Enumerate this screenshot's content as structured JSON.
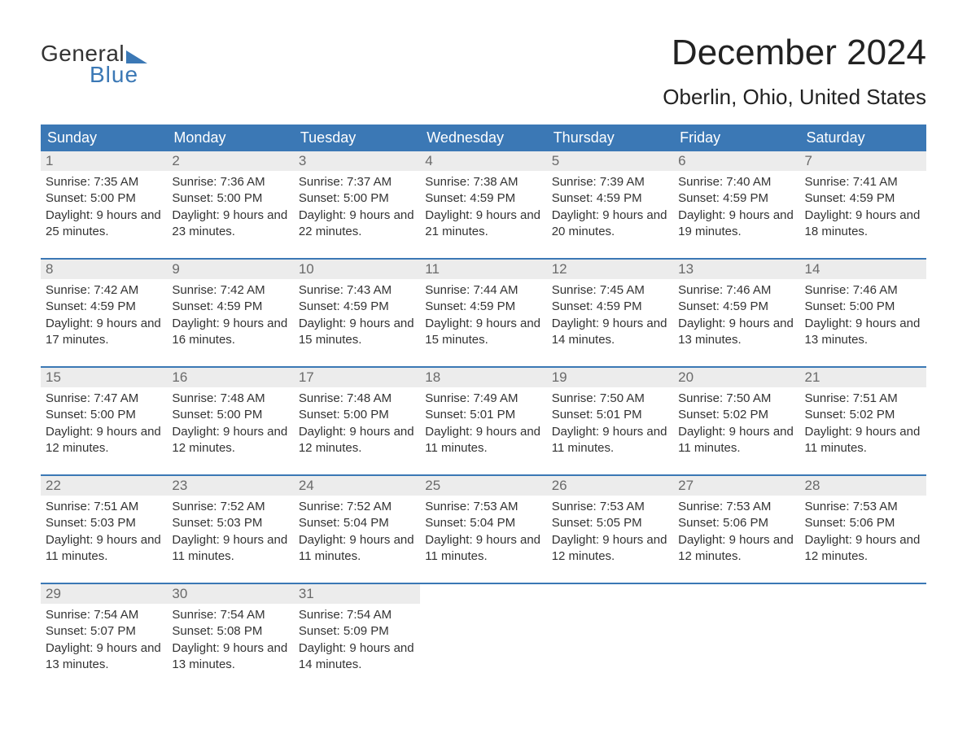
{
  "logo": {
    "line1": "General",
    "line2": "Blue"
  },
  "title": "December 2024",
  "location": "Oberlin, Ohio, United States",
  "colors": {
    "header_bg": "#3b78b5",
    "header_text": "#ffffff",
    "daynum_bg": "#ececec",
    "daynum_text": "#6a6a6a",
    "body_text": "#333333",
    "rule": "#3b78b5"
  },
  "day_headers": [
    "Sunday",
    "Monday",
    "Tuesday",
    "Wednesday",
    "Thursday",
    "Friday",
    "Saturday"
  ],
  "weeks": [
    [
      {
        "n": "1",
        "sunrise": "7:35 AM",
        "sunset": "5:00 PM",
        "daylight": "9 hours and 25 minutes."
      },
      {
        "n": "2",
        "sunrise": "7:36 AM",
        "sunset": "5:00 PM",
        "daylight": "9 hours and 23 minutes."
      },
      {
        "n": "3",
        "sunrise": "7:37 AM",
        "sunset": "5:00 PM",
        "daylight": "9 hours and 22 minutes."
      },
      {
        "n": "4",
        "sunrise": "7:38 AM",
        "sunset": "4:59 PM",
        "daylight": "9 hours and 21 minutes."
      },
      {
        "n": "5",
        "sunrise": "7:39 AM",
        "sunset": "4:59 PM",
        "daylight": "9 hours and 20 minutes."
      },
      {
        "n": "6",
        "sunrise": "7:40 AM",
        "sunset": "4:59 PM",
        "daylight": "9 hours and 19 minutes."
      },
      {
        "n": "7",
        "sunrise": "7:41 AM",
        "sunset": "4:59 PM",
        "daylight": "9 hours and 18 minutes."
      }
    ],
    [
      {
        "n": "8",
        "sunrise": "7:42 AM",
        "sunset": "4:59 PM",
        "daylight": "9 hours and 17 minutes."
      },
      {
        "n": "9",
        "sunrise": "7:42 AM",
        "sunset": "4:59 PM",
        "daylight": "9 hours and 16 minutes."
      },
      {
        "n": "10",
        "sunrise": "7:43 AM",
        "sunset": "4:59 PM",
        "daylight": "9 hours and 15 minutes."
      },
      {
        "n": "11",
        "sunrise": "7:44 AM",
        "sunset": "4:59 PM",
        "daylight": "9 hours and 15 minutes."
      },
      {
        "n": "12",
        "sunrise": "7:45 AM",
        "sunset": "4:59 PM",
        "daylight": "9 hours and 14 minutes."
      },
      {
        "n": "13",
        "sunrise": "7:46 AM",
        "sunset": "4:59 PM",
        "daylight": "9 hours and 13 minutes."
      },
      {
        "n": "14",
        "sunrise": "7:46 AM",
        "sunset": "5:00 PM",
        "daylight": "9 hours and 13 minutes."
      }
    ],
    [
      {
        "n": "15",
        "sunrise": "7:47 AM",
        "sunset": "5:00 PM",
        "daylight": "9 hours and 12 minutes."
      },
      {
        "n": "16",
        "sunrise": "7:48 AM",
        "sunset": "5:00 PM",
        "daylight": "9 hours and 12 minutes."
      },
      {
        "n": "17",
        "sunrise": "7:48 AM",
        "sunset": "5:00 PM",
        "daylight": "9 hours and 12 minutes."
      },
      {
        "n": "18",
        "sunrise": "7:49 AM",
        "sunset": "5:01 PM",
        "daylight": "9 hours and 11 minutes."
      },
      {
        "n": "19",
        "sunrise": "7:50 AM",
        "sunset": "5:01 PM",
        "daylight": "9 hours and 11 minutes."
      },
      {
        "n": "20",
        "sunrise": "7:50 AM",
        "sunset": "5:02 PM",
        "daylight": "9 hours and 11 minutes."
      },
      {
        "n": "21",
        "sunrise": "7:51 AM",
        "sunset": "5:02 PM",
        "daylight": "9 hours and 11 minutes."
      }
    ],
    [
      {
        "n": "22",
        "sunrise": "7:51 AM",
        "sunset": "5:03 PM",
        "daylight": "9 hours and 11 minutes."
      },
      {
        "n": "23",
        "sunrise": "7:52 AM",
        "sunset": "5:03 PM",
        "daylight": "9 hours and 11 minutes."
      },
      {
        "n": "24",
        "sunrise": "7:52 AM",
        "sunset": "5:04 PM",
        "daylight": "9 hours and 11 minutes."
      },
      {
        "n": "25",
        "sunrise": "7:53 AM",
        "sunset": "5:04 PM",
        "daylight": "9 hours and 11 minutes."
      },
      {
        "n": "26",
        "sunrise": "7:53 AM",
        "sunset": "5:05 PM",
        "daylight": "9 hours and 12 minutes."
      },
      {
        "n": "27",
        "sunrise": "7:53 AM",
        "sunset": "5:06 PM",
        "daylight": "9 hours and 12 minutes."
      },
      {
        "n": "28",
        "sunrise": "7:53 AM",
        "sunset": "5:06 PM",
        "daylight": "9 hours and 12 minutes."
      }
    ],
    [
      {
        "n": "29",
        "sunrise": "7:54 AM",
        "sunset": "5:07 PM",
        "daylight": "9 hours and 13 minutes."
      },
      {
        "n": "30",
        "sunrise": "7:54 AM",
        "sunset": "5:08 PM",
        "daylight": "9 hours and 13 minutes."
      },
      {
        "n": "31",
        "sunrise": "7:54 AM",
        "sunset": "5:09 PM",
        "daylight": "9 hours and 14 minutes."
      },
      null,
      null,
      null,
      null
    ]
  ],
  "labels": {
    "sunrise": "Sunrise: ",
    "sunset": "Sunset: ",
    "daylight": "Daylight: "
  }
}
